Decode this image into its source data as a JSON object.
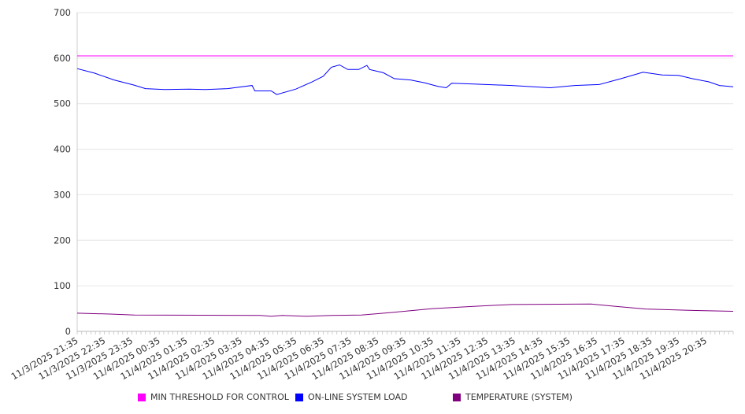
{
  "chart_data": {
    "type": "line",
    "title": "",
    "xlabel": "",
    "ylabel": "",
    "ylim": [
      0,
      700
    ],
    "yticks": [
      0,
      100,
      200,
      300,
      400,
      500,
      600,
      700
    ],
    "xlim_hours": [
      0,
      24
    ],
    "xtick_labels": [
      "11/3/2025 21:35",
      "11/3/2025 22:35",
      "11/3/2025 23:35",
      "11/4/2025 00:35",
      "11/4/2025 01:35",
      "11/4/2025 02:35",
      "11/4/2025 03:35",
      "11/4/2025 04:35",
      "11/4/2025 05:35",
      "11/4/2025 06:35",
      "11/4/2025 07:35",
      "11/4/2025 08:35",
      "11/4/2025 09:35",
      "11/4/2025 10:35",
      "11/4/2025 11:35",
      "11/4/2025 12:35",
      "11/4/2025 13:35",
      "11/4/2025 14:35",
      "11/4/2025 15:35",
      "11/4/2025 16:35",
      "11/4/2025 17:35",
      "11/4/2025 18:35",
      "11/4/2025 19:35",
      "11/4/2025 20:35"
    ],
    "grid": true,
    "legend_position": "bottom",
    "series": [
      {
        "name": "MIN THRESHOLD FOR CONTROL",
        "color": "#ff00ff",
        "x": [
          0,
          24
        ],
        "y": [
          605,
          605
        ]
      },
      {
        "name": "ON-LINE SYSTEM LOAD",
        "color": "#0000ff",
        "x": [
          0,
          0.63,
          1.35,
          2.07,
          2.5,
          3.2,
          4.1,
          4.7,
          5.5,
          6.4,
          6.5,
          7.1,
          7.3,
          8.0,
          8.6,
          9.0,
          9.3,
          9.6,
          9.9,
          10.3,
          10.6,
          10.7,
          11.2,
          11.6,
          12.2,
          12.7,
          13.2,
          13.5,
          13.7,
          14.5,
          15.9,
          17.3,
          18.2,
          19.1,
          19.9,
          20.7,
          21.4,
          22.0,
          22.5,
          23.1,
          23.5,
          24
        ],
        "y": [
          577,
          567,
          552,
          541,
          533,
          531,
          532,
          531,
          533,
          540,
          528,
          528,
          520,
          532,
          548,
          560,
          580,
          585,
          575,
          575,
          584,
          575,
          568,
          555,
          552,
          546,
          538,
          535,
          545,
          543,
          540,
          535,
          540,
          542,
          555,
          569,
          563,
          562,
          555,
          548,
          540,
          537
        ]
      },
      {
        "name": "TEMPERATURE (SYSTEM)",
        "color": "#800080",
        "x": [
          0,
          1.2,
          2.1,
          6.7,
          7.1,
          7.5,
          8.4,
          9.3,
          10.4,
          11.6,
          13.0,
          14.5,
          15.9,
          18.8,
          19.7,
          20.8,
          22.5,
          24
        ],
        "y": [
          40,
          38,
          36,
          35,
          33,
          35,
          33,
          35,
          36,
          42,
          50,
          55,
          59,
          60,
          55,
          49,
          46,
          44
        ]
      }
    ]
  }
}
